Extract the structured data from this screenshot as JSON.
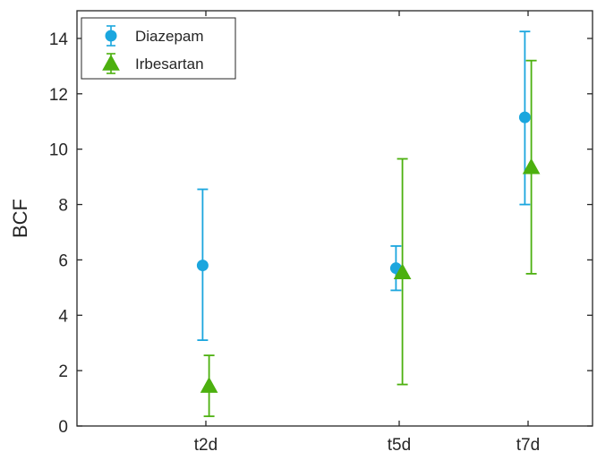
{
  "chart_data": {
    "type": "scatter",
    "subtype": "errorbar",
    "categories": [
      "t2d",
      "t5d",
      "t7d"
    ],
    "x": [
      2,
      5,
      7
    ],
    "xlim": [
      0,
      8
    ],
    "xlabel": "",
    "ylabel": "BCF",
    "ylim": [
      0,
      15
    ],
    "yticks": [
      0,
      2,
      4,
      6,
      8,
      10,
      12,
      14
    ],
    "ytick_labels": [
      "0",
      "2",
      "4",
      "6",
      "8",
      "10",
      "12",
      "14"
    ],
    "grid": false,
    "legend_position": "top-left",
    "series": [
      {
        "name": "Diazepam",
        "marker": "circle",
        "color": "#1ba6de",
        "values": [
          5.8,
          5.7,
          11.15
        ],
        "lower": [
          3.1,
          4.9,
          8.0
        ],
        "upper": [
          8.55,
          6.5,
          14.25
        ]
      },
      {
        "name": "Irbesartan",
        "marker": "triangle",
        "color": "#4cb00f",
        "values": [
          1.45,
          5.55,
          9.35
        ],
        "lower": [
          0.35,
          1.5,
          5.5
        ],
        "upper": [
          2.55,
          9.65,
          13.2
        ]
      }
    ]
  }
}
